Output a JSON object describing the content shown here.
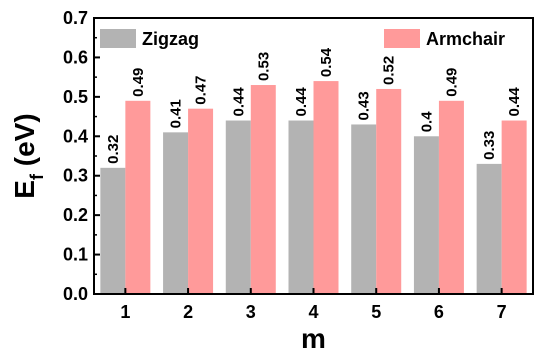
{
  "chart_data": {
    "type": "bar",
    "categories": [
      "1",
      "2",
      "3",
      "4",
      "5",
      "6",
      "7"
    ],
    "series": [
      {
        "name": "Zigzag",
        "color": "#b3b3b3",
        "values": [
          0.32,
          0.41,
          0.44,
          0.44,
          0.43,
          0.4,
          0.33
        ],
        "labels": [
          "0.32",
          "0.41",
          "0.44",
          "0.44",
          "0.43",
          "0.4",
          "0.33"
        ]
      },
      {
        "name": "Armchair",
        "color": "#ff9a9a",
        "values": [
          0.49,
          0.47,
          0.53,
          0.54,
          0.52,
          0.49,
          0.44
        ],
        "labels": [
          "0.49",
          "0.47",
          "0.53",
          "0.54",
          "0.52",
          "0.49",
          "0.44"
        ]
      }
    ],
    "xlabel": "m",
    "ylabel": "E",
    "ylabel_subscript": "f",
    "ylabel_unit": " (eV)",
    "ylim": [
      0.0,
      0.7
    ],
    "yticks": [
      "0.0",
      "0.1",
      "0.2",
      "0.3",
      "0.4",
      "0.5",
      "0.6",
      "0.7"
    ],
    "legend": "top-inside",
    "grid": false
  }
}
